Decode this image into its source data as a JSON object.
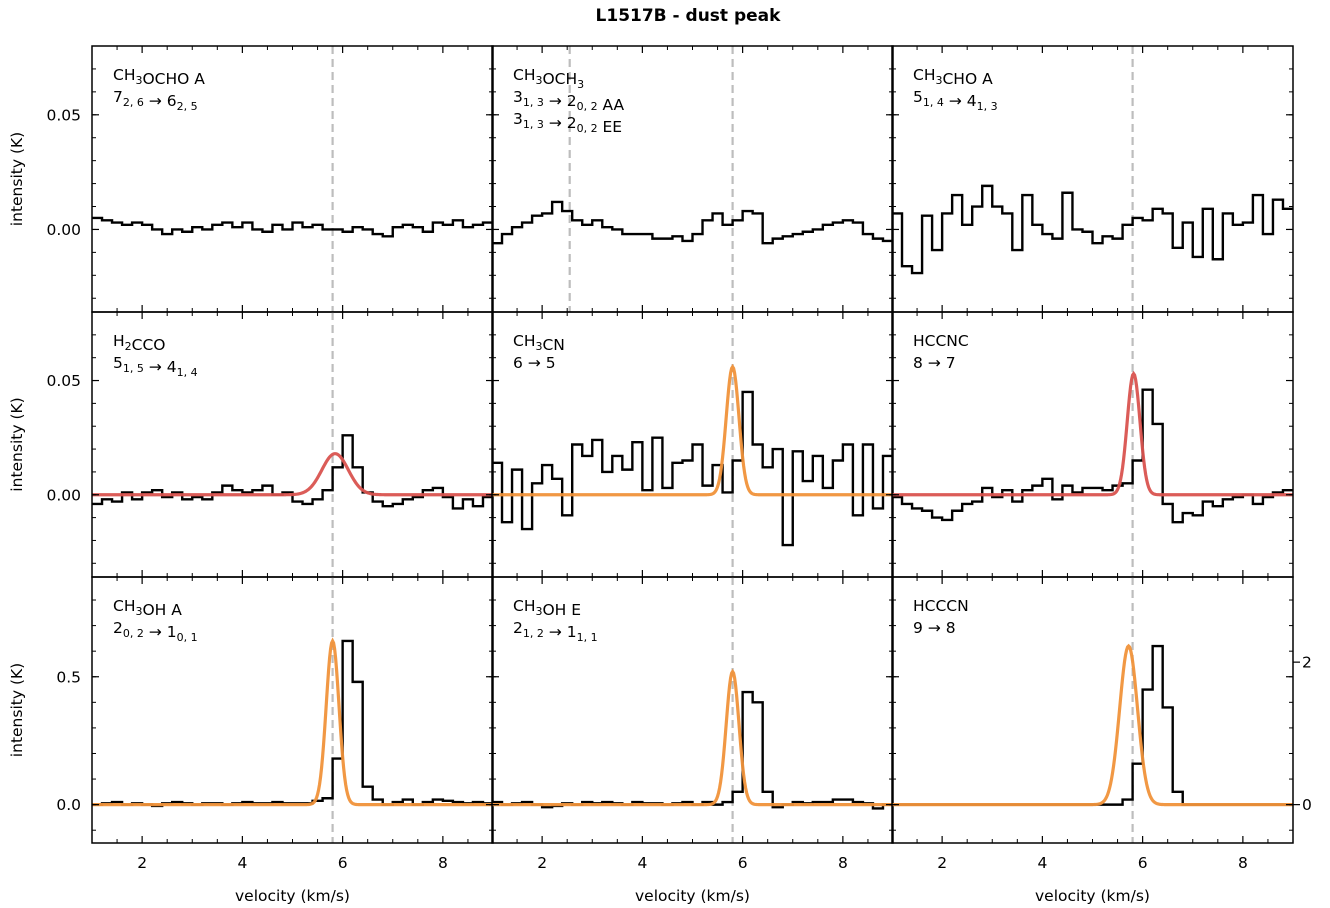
{
  "figure_title": "L1517B - dust peak",
  "colors": {
    "observed": "#000000",
    "fit_red": "#d9534f",
    "fit_orange": "#f0923a",
    "vline": "#bdbdbd"
  },
  "chart_data": [
    {
      "type": "line",
      "row": 0,
      "col": 0,
      "label_lines": [
        [
          "CH",
          {
            "sub": "3"
          },
          "OCHO A"
        ],
        [
          "7",
          {
            "sub": "2, 6"
          },
          " → 6",
          {
            "sub": "2, 5"
          }
        ]
      ],
      "ylabel": "intensity (K)",
      "xlabel": "",
      "xlim": [
        1.0,
        9.0
      ],
      "ylim": [
        -0.036,
        0.08
      ],
      "yticks": [
        0.0,
        0.05
      ],
      "yticklabels": [
        "0.00",
        "0.05"
      ],
      "vlines": [
        5.8
      ],
      "observed": {
        "x0": 1.0,
        "dx": 0.2,
        "y": [
          0.005,
          0.004,
          0.003,
          0.002,
          0.003,
          0.002,
          0.0,
          -0.002,
          0.0,
          -0.001,
          0.001,
          0.0,
          0.002,
          0.003,
          0.001,
          0.003,
          0.0,
          -0.001,
          0.002,
          0.0,
          0.003,
          0.001,
          0.002,
          0.0,
          0.0,
          -0.001,
          0.001,
          0.0,
          -0.002,
          -0.003,
          0.001,
          0.002,
          0.001,
          -0.001,
          0.003,
          0.002,
          0.004,
          0.001,
          0.002,
          0.003
        ]
      },
      "fit": null
    },
    {
      "type": "line",
      "row": 0,
      "col": 1,
      "label_lines": [
        [
          "CH",
          {
            "sub": "3"
          },
          "OCH",
          {
            "sub": "3"
          }
        ],
        [
          "3",
          {
            "sub": "1, 3"
          },
          " → 2",
          {
            "sub": "0, 2"
          },
          " AA"
        ],
        [
          "3",
          {
            "sub": "1, 3"
          },
          " → 2",
          {
            "sub": "0, 2"
          },
          " EE"
        ]
      ],
      "ylabel": "",
      "xlabel": "",
      "xlim": [
        1.0,
        9.0
      ],
      "ylim": [
        -0.036,
        0.08
      ],
      "yticks": [
        0.0,
        0.05
      ],
      "yticklabels": [],
      "vlines": [
        2.55,
        5.8
      ],
      "observed": {
        "x0": 1.0,
        "dx": 0.2,
        "y": [
          -0.006,
          -0.002,
          0.001,
          0.003,
          0.006,
          0.007,
          0.012,
          0.008,
          0.004,
          0.002,
          0.004,
          0.001,
          0.0,
          -0.002,
          -0.002,
          -0.002,
          -0.004,
          -0.004,
          -0.003,
          -0.005,
          -0.002,
          0.004,
          0.007,
          0.002,
          0.004,
          0.008,
          0.007,
          -0.006,
          -0.004,
          -0.003,
          -0.002,
          -0.001,
          0.0,
          0.002,
          0.003,
          0.004,
          0.003,
          -0.002,
          -0.004,
          -0.005
        ]
      },
      "fit": null
    },
    {
      "type": "line",
      "row": 0,
      "col": 2,
      "label_lines": [
        [
          "CH",
          {
            "sub": "3"
          },
          "CHO A"
        ],
        [
          "5",
          {
            "sub": "1, 4"
          },
          " → 4",
          {
            "sub": "1, 3"
          }
        ]
      ],
      "ylabel": "",
      "xlabel": "",
      "xlim": [
        1.0,
        9.0
      ],
      "ylim": [
        -0.036,
        0.08
      ],
      "yticks": [
        0.0,
        0.05
      ],
      "yticklabels": [],
      "vlines": [
        5.8
      ],
      "observed": {
        "x0": 1.0,
        "dx": 0.2,
        "y": [
          0.007,
          -0.016,
          -0.019,
          0.006,
          -0.009,
          0.007,
          0.015,
          0.002,
          0.01,
          0.019,
          0.01,
          0.007,
          -0.009,
          0.015,
          0.002,
          -0.002,
          -0.004,
          0.016,
          0.0,
          -0.001,
          -0.006,
          -0.003,
          -0.004,
          0.002,
          0.005,
          0.004,
          0.009,
          0.007,
          -0.008,
          0.003,
          -0.012,
          0.009,
          -0.013,
          0.007,
          0.002,
          0.003,
          0.015,
          -0.002,
          0.013,
          0.009
        ]
      },
      "fit": null
    },
    {
      "type": "line",
      "row": 1,
      "col": 0,
      "label_lines": [
        [
          "H",
          {
            "sub": "2"
          },
          "CCO"
        ],
        [
          "5",
          {
            "sub": "1, 5"
          },
          " → 4",
          {
            "sub": "1, 4"
          }
        ]
      ],
      "ylabel": "intensity (K)",
      "xlabel": "",
      "xlim": [
        1.0,
        9.0
      ],
      "ylim": [
        -0.036,
        0.08
      ],
      "yticks": [
        0.0,
        0.05
      ],
      "yticklabels": [
        "0.00",
        "0.05"
      ],
      "vlines": [
        5.8
      ],
      "observed": {
        "x0": 1.0,
        "dx": 0.2,
        "y": [
          -0.004,
          -0.002,
          -0.003,
          0.001,
          -0.002,
          0.001,
          0.002,
          -0.001,
          0.001,
          -0.002,
          -0.001,
          -0.002,
          0.001,
          0.004,
          0.002,
          0.001,
          0.002,
          0.004,
          0.0,
          0.001,
          -0.003,
          -0.004,
          -0.002,
          0.002,
          0.012,
          0.026,
          0.012,
          0.001,
          -0.003,
          -0.005,
          -0.004,
          -0.002,
          -0.001,
          0.002,
          0.003,
          -0.001,
          -0.006,
          -0.002,
          -0.005,
          -0.001
        ]
      },
      "fit": {
        "color": "red",
        "amp": 0.018,
        "center": 5.85,
        "fwhm": 0.62
      }
    },
    {
      "type": "line",
      "row": 1,
      "col": 1,
      "label_lines": [
        [
          "CH",
          {
            "sub": "3"
          },
          "CN"
        ],
        [
          "6 → 5"
        ]
      ],
      "ylabel": "",
      "xlabel": "",
      "xlim": [
        1.0,
        9.0
      ],
      "ylim": [
        -0.036,
        0.08
      ],
      "yticks": [
        0.0,
        0.05
      ],
      "yticklabels": [],
      "vlines": [
        5.8
      ],
      "observed": {
        "x0": 1.0,
        "dx": 0.2,
        "y": [
          0.014,
          -0.012,
          0.011,
          -0.015,
          0.005,
          0.013,
          0.007,
          -0.009,
          0.022,
          0.017,
          0.024,
          0.01,
          0.017,
          0.011,
          0.023,
          0.002,
          0.025,
          0.003,
          0.014,
          0.015,
          0.022,
          0.004,
          0.013,
          0.001,
          0.015,
          0.045,
          0.022,
          0.012,
          0.02,
          -0.022,
          0.019,
          0.006,
          0.017,
          0.003,
          0.015,
          0.022,
          -0.009,
          0.022,
          -0.006,
          0.017
        ]
      },
      "fit": {
        "color": "orange",
        "amp": 0.056,
        "center": 5.8,
        "fwhm": 0.3
      }
    },
    {
      "type": "line",
      "row": 1,
      "col": 2,
      "label_lines": [
        [
          "HCCNC"
        ],
        [
          "8 → 7"
        ]
      ],
      "ylabel": "",
      "xlabel": "",
      "xlim": [
        1.0,
        9.0
      ],
      "ylim": [
        -0.036,
        0.08
      ],
      "yticks": [
        0.0,
        0.05
      ],
      "yticklabels": [],
      "vlines": [
        5.8
      ],
      "observed": {
        "x0": 1.0,
        "dx": 0.2,
        "y": [
          -0.001,
          -0.004,
          -0.006,
          -0.007,
          -0.01,
          -0.011,
          -0.007,
          -0.004,
          -0.003,
          0.003,
          -0.001,
          0.002,
          -0.003,
          0.002,
          0.004,
          0.007,
          -0.002,
          0.004,
          0.001,
          0.003,
          0.003,
          0.002,
          0.004,
          0.005,
          0.015,
          0.046,
          0.031,
          -0.004,
          -0.012,
          -0.008,
          -0.009,
          -0.003,
          -0.005,
          -0.002,
          -0.001,
          0.0,
          -0.004,
          -0.001,
          0.001,
          0.002
        ]
      },
      "fit": {
        "color": "red",
        "amp": 0.053,
        "center": 5.82,
        "fwhm": 0.3
      }
    },
    {
      "type": "line",
      "row": 2,
      "col": 0,
      "label_lines": [
        [
          "CH",
          {
            "sub": "3"
          },
          "OH A"
        ],
        [
          "2",
          {
            "sub": "0, 2"
          },
          " → 1",
          {
            "sub": "0, 1"
          }
        ]
      ],
      "ylabel": "intensity (K)",
      "xlabel": "velocity (km/s)",
      "xlim": [
        1.0,
        9.0
      ],
      "ylim": [
        -0.15,
        0.89
      ],
      "yticks": [
        0.0,
        0.5
      ],
      "yticklabels": [
        "0.0",
        "0.5"
      ],
      "xticks": [
        2,
        4,
        6,
        8
      ],
      "xticklabels": [
        "2",
        "4",
        "6",
        "8"
      ],
      "vlines": [
        5.8
      ],
      "observed": {
        "x0": 1.0,
        "dx": 0.2,
        "y": [
          0.0,
          0.005,
          0.01,
          0.0,
          0.005,
          0.0,
          -0.005,
          0.005,
          0.01,
          0.005,
          0.0,
          0.005,
          0.005,
          0.0,
          0.005,
          0.01,
          0.005,
          0.005,
          0.01,
          0.005,
          0.005,
          0.005,
          0.015,
          0.025,
          0.18,
          0.64,
          0.48,
          0.07,
          0.02,
          0.0,
          0.01,
          0.02,
          0.0,
          0.01,
          0.02,
          0.015,
          0.01,
          0.005,
          0.01,
          0.005
        ]
      },
      "fit": {
        "color": "orange",
        "amp": 0.64,
        "center": 5.8,
        "fwhm": 0.3
      }
    },
    {
      "type": "line",
      "row": 2,
      "col": 1,
      "label_lines": [
        [
          "CH",
          {
            "sub": "3"
          },
          "OH E"
        ],
        [
          "2",
          {
            "sub": "1, 2"
          },
          " → 1",
          {
            "sub": "1, 1"
          }
        ]
      ],
      "ylabel": "",
      "xlabel": "velocity (km/s)",
      "xlim": [
        1.0,
        9.0
      ],
      "ylim": [
        -0.15,
        0.89
      ],
      "yticks": [
        0.0,
        0.5
      ],
      "yticklabels": [],
      "xticks": [
        2,
        4,
        6,
        8
      ],
      "xticklabels": [
        "2",
        "4",
        "6",
        "8"
      ],
      "vlines": [
        5.8
      ],
      "observed": {
        "x0": 1.0,
        "dx": 0.2,
        "y": [
          0.01,
          0.0,
          0.005,
          0.01,
          0.0,
          -0.01,
          -0.005,
          0.005,
          0.0,
          0.01,
          0.005,
          0.01,
          0.005,
          0.0,
          0.01,
          0.005,
          0.005,
          0.0,
          0.005,
          0.01,
          0.0,
          0.01,
          0.0,
          0.01,
          0.05,
          0.44,
          0.4,
          0.05,
          -0.01,
          0.0,
          0.01,
          0.005,
          0.01,
          0.01,
          0.02,
          0.02,
          0.01,
          0.005,
          -0.015,
          0.0
        ]
      },
      "fit": {
        "color": "orange",
        "amp": 0.52,
        "center": 5.8,
        "fwhm": 0.3
      }
    },
    {
      "type": "line",
      "row": 2,
      "col": 2,
      "label_lines": [
        [
          "HCCCN"
        ],
        [
          "9 → 8"
        ]
      ],
      "ylabel": "",
      "xlabel": "velocity (km/s)",
      "xlim": [
        1.0,
        9.0
      ],
      "ylim": [
        -0.15,
        0.89
      ],
      "yticks": [
        0.0,
        0.5
      ],
      "yticklabels": [],
      "y2ticks": [
        0,
        2
      ],
      "y2ticklabels": [
        "0",
        "2"
      ],
      "y2_per_y": 3.59,
      "xticks": [
        2,
        4,
        6,
        8
      ],
      "xticklabels": [
        "2",
        "4",
        "6",
        "8"
      ],
      "vlines": [
        5.8
      ],
      "observed": {
        "x0": 1.0,
        "dx": 0.2,
        "y": [
          0.0,
          0.0,
          0.0,
          0.0,
          0.0,
          0.0,
          0.0,
          0.0,
          0.0,
          0.0,
          0.0,
          0.0,
          0.0,
          0.0,
          0.0,
          0.0,
          0.0,
          0.0,
          0.0,
          0.0,
          0.0,
          0.0,
          0.0,
          0.02,
          0.16,
          0.45,
          0.62,
          0.38,
          0.05,
          0.0,
          0.0,
          0.0,
          0.0,
          0.0,
          0.0,
          0.0,
          0.0,
          0.0,
          0.0,
          0.0
        ]
      },
      "fit": {
        "color": "orange",
        "amp": 0.62,
        "center": 5.72,
        "fwhm": 0.42
      }
    }
  ]
}
